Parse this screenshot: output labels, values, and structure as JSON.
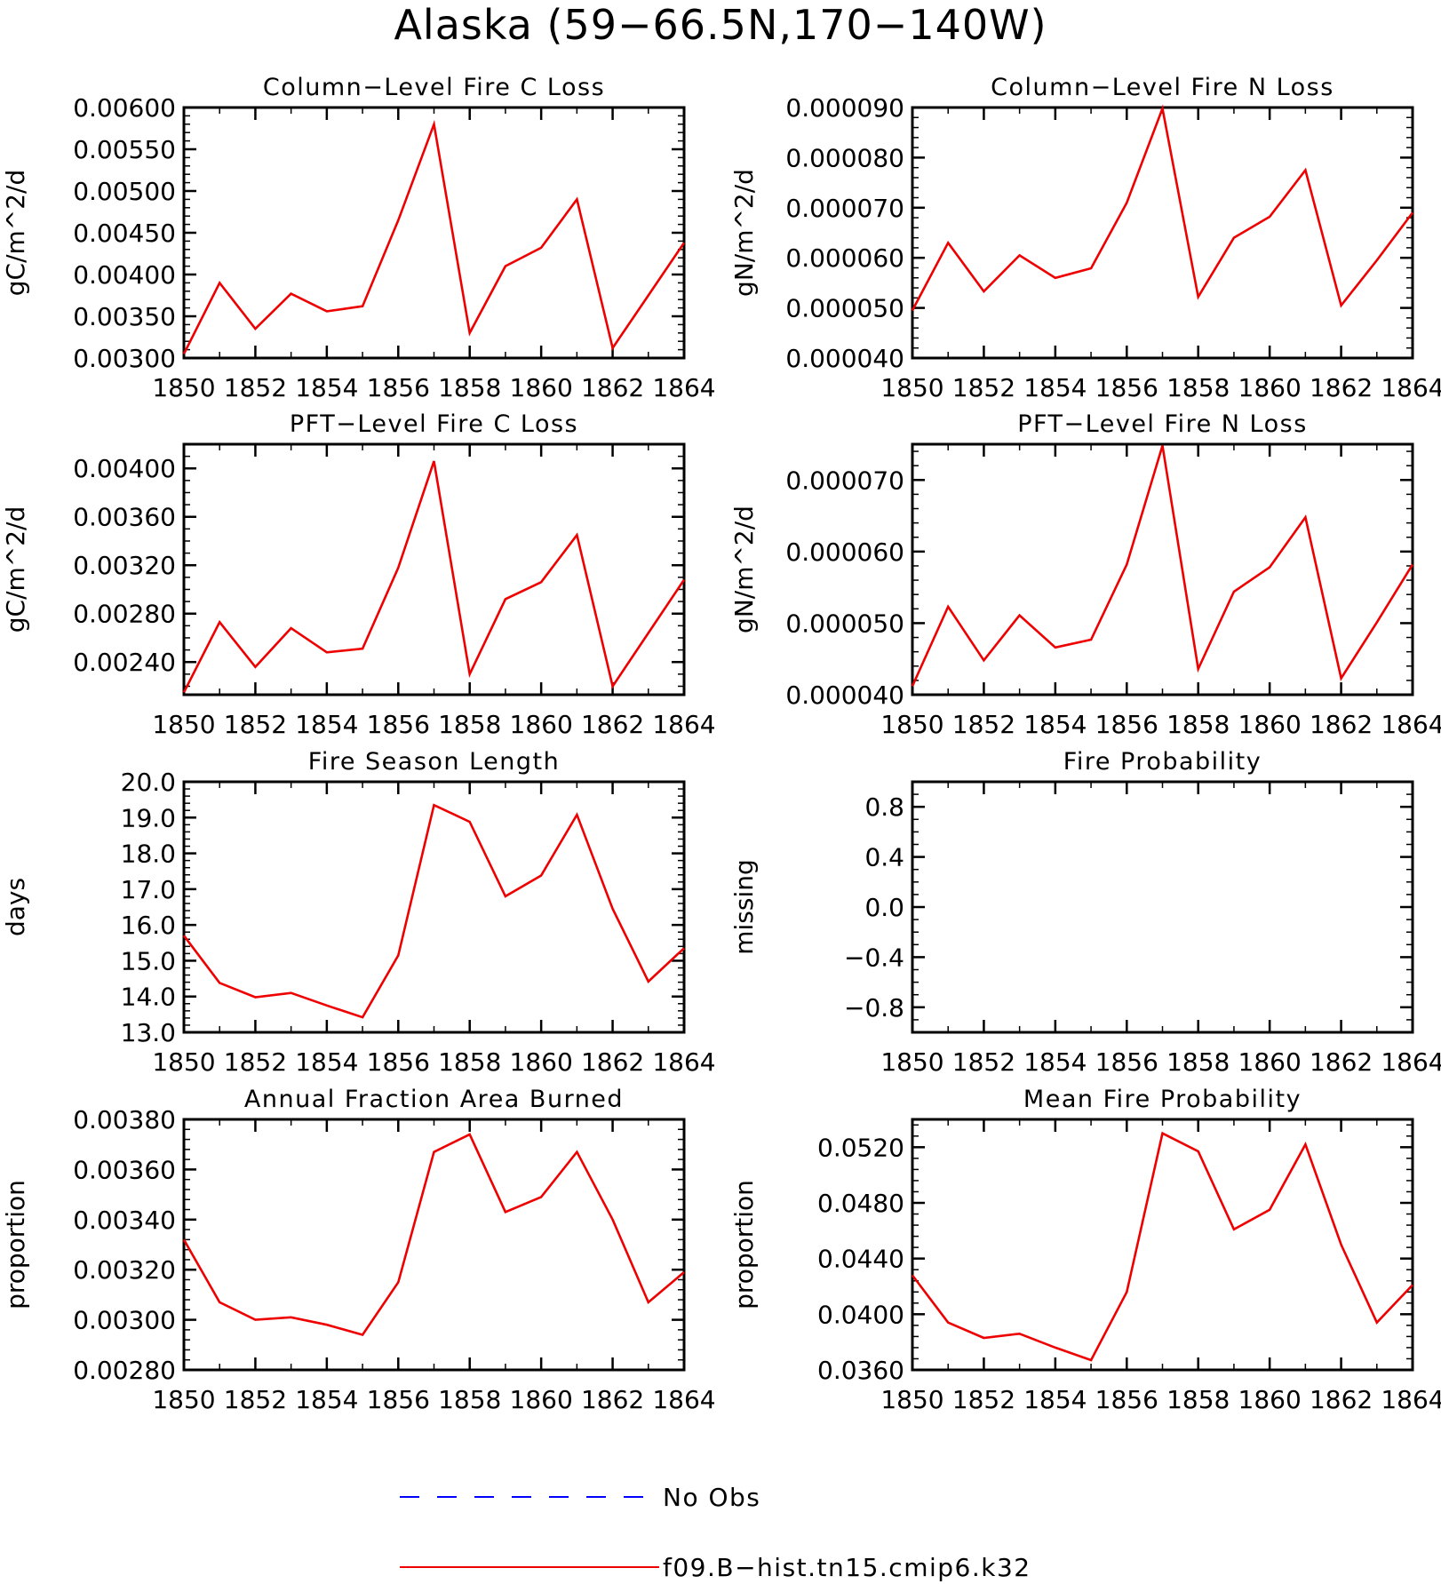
{
  "title": "Alaska (59−66.5N,170−140W)",
  "colors": {
    "model": "#ee0000",
    "obs": "#0000ff",
    "axis": "#000000"
  },
  "legend": [
    {
      "label": "No Obs",
      "color": "#0000ff",
      "style": "dashed"
    },
    {
      "label": "f09.B−hist.tn15.cmip6.k32",
      "color": "#ee0000",
      "style": "solid"
    }
  ],
  "chart_data": [
    {
      "type": "line",
      "title": "Column−Level Fire C Loss",
      "ylabel": "gC/m^2/d",
      "xlim": [
        1850,
        1864
      ],
      "xticks": [
        1850,
        1852,
        1854,
        1856,
        1858,
        1860,
        1862,
        1864
      ],
      "ylim": [
        0.003,
        0.006
      ],
      "yticks": [
        0.003,
        0.0035,
        0.004,
        0.0045,
        0.005,
        0.0055,
        0.006
      ],
      "ytick_labels": [
        "0.00300",
        "0.00350",
        "0.00400",
        "0.00450",
        "0.00500",
        "0.00550",
        "0.00600"
      ],
      "yminor": 0.0001,
      "x": [
        1850,
        1851,
        1852,
        1853,
        1854,
        1855,
        1856,
        1857,
        1858,
        1859,
        1860,
        1861,
        1862,
        1863,
        1864
      ],
      "series": [
        {
          "name": "f09.B−hist.tn15.cmip6.k32",
          "values": [
            0.00305,
            0.0039,
            0.00335,
            0.00377,
            0.00356,
            0.00362,
            0.00465,
            0.0058,
            0.0033,
            0.0041,
            0.00432,
            0.0049,
            0.00312,
            0.00375,
            0.00438
          ]
        }
      ]
    },
    {
      "type": "line",
      "title": "Column−Level Fire N Loss",
      "ylabel": "gN/m^2/d",
      "xlim": [
        1850,
        1864
      ],
      "xticks": [
        1850,
        1852,
        1854,
        1856,
        1858,
        1860,
        1862,
        1864
      ],
      "ylim": [
        4e-05,
        9e-05
      ],
      "yticks": [
        4e-05,
        5e-05,
        6e-05,
        7e-05,
        8e-05,
        9e-05
      ],
      "ytick_labels": [
        "0.000040",
        "0.000050",
        "0.000060",
        "0.000070",
        "0.000080",
        "0.000090"
      ],
      "yminor": 2e-06,
      "x": [
        1850,
        1851,
        1852,
        1853,
        1854,
        1855,
        1856,
        1857,
        1858,
        1859,
        1860,
        1861,
        1862,
        1863,
        1864
      ],
      "series": [
        {
          "name": "f09.B−hist.tn15.cmip6.k32",
          "values": [
            4.95e-05,
            6.3e-05,
            5.33e-05,
            6.05e-05,
            5.6e-05,
            5.79e-05,
            7.1e-05,
            8.98e-05,
            5.22e-05,
            6.4e-05,
            6.82e-05,
            7.75e-05,
            5.05e-05,
            5.95e-05,
            6.9e-05
          ]
        }
      ]
    },
    {
      "type": "line",
      "title": "PFT−Level Fire C Loss",
      "ylabel": "gC/m^2/d",
      "xlim": [
        1850,
        1864
      ],
      "xticks": [
        1850,
        1852,
        1854,
        1856,
        1858,
        1860,
        1862,
        1864
      ],
      "ylim": [
        0.00213,
        0.0042
      ],
      "yticks": [
        0.0024,
        0.0028,
        0.0032,
        0.0036,
        0.004
      ],
      "ytick_labels": [
        "0.00240",
        "0.00280",
        "0.00320",
        "0.00360",
        "0.00400"
      ],
      "yminor": 0.0001,
      "x": [
        1850,
        1851,
        1852,
        1853,
        1854,
        1855,
        1856,
        1857,
        1858,
        1859,
        1860,
        1861,
        1862,
        1863,
        1864
      ],
      "series": [
        {
          "name": "f09.B−hist.tn15.cmip6.k32",
          "values": [
            0.00215,
            0.00273,
            0.00236,
            0.00268,
            0.00248,
            0.00251,
            0.00318,
            0.00406,
            0.0023,
            0.00292,
            0.00306,
            0.00345,
            0.0022,
            0.00264,
            0.00308
          ]
        }
      ]
    },
    {
      "type": "line",
      "title": "PFT−Level Fire N Loss",
      "ylabel": "gN/m^2/d",
      "xlim": [
        1850,
        1864
      ],
      "xticks": [
        1850,
        1852,
        1854,
        1856,
        1858,
        1860,
        1862,
        1864
      ],
      "ylim": [
        4e-05,
        7.5e-05
      ],
      "yticks": [
        4e-05,
        5e-05,
        6e-05,
        7e-05
      ],
      "ytick_labels": [
        "0.000040",
        "0.000050",
        "0.000060",
        "0.000070"
      ],
      "yminor": 2e-06,
      "x": [
        1850,
        1851,
        1852,
        1853,
        1854,
        1855,
        1856,
        1857,
        1858,
        1859,
        1860,
        1861,
        1862,
        1863,
        1864
      ],
      "series": [
        {
          "name": "f09.B−hist.tn15.cmip6.k32",
          "values": [
            4.12e-05,
            5.23e-05,
            4.48e-05,
            5.11e-05,
            4.66e-05,
            4.77e-05,
            5.82e-05,
            7.48e-05,
            4.36e-05,
            5.44e-05,
            5.78e-05,
            6.48e-05,
            4.23e-05,
            5.01e-05,
            5.82e-05
          ]
        }
      ]
    },
    {
      "type": "line",
      "title": "Fire Season Length",
      "ylabel": "days",
      "xlim": [
        1850,
        1864
      ],
      "xticks": [
        1850,
        1852,
        1854,
        1856,
        1858,
        1860,
        1862,
        1864
      ],
      "ylim": [
        13,
        20
      ],
      "yticks": [
        13,
        14,
        15,
        16,
        17,
        18,
        19,
        20
      ],
      "ytick_labels": [
        "13.0",
        "14.0",
        "15.0",
        "16.0",
        "17.0",
        "18.0",
        "19.0",
        "20.0"
      ],
      "yminor": 0.2,
      "x": [
        1850,
        1851,
        1852,
        1853,
        1854,
        1855,
        1856,
        1857,
        1858,
        1859,
        1860,
        1861,
        1862,
        1863,
        1864
      ],
      "series": [
        {
          "name": "f09.B−hist.tn15.cmip6.k32",
          "values": [
            15.7,
            14.38,
            13.98,
            14.1,
            13.75,
            13.42,
            15.15,
            19.35,
            18.88,
            16.8,
            17.38,
            19.08,
            16.45,
            14.42,
            15.35
          ]
        }
      ]
    },
    {
      "type": "line",
      "title": "Fire Probability",
      "ylabel": "missing",
      "xlim": [
        1850,
        1864
      ],
      "xticks": [
        1850,
        1852,
        1854,
        1856,
        1858,
        1860,
        1862,
        1864
      ],
      "ylim": [
        -1.0,
        1.0
      ],
      "yticks": [
        -0.8,
        -0.4,
        0.0,
        0.4,
        0.8
      ],
      "ytick_labels": [
        "−0.8",
        "−0.4",
        "0.0",
        "0.4",
        "0.8"
      ],
      "yminor": 0.1,
      "x": [],
      "series": []
    },
    {
      "type": "line",
      "title": "Annual Fraction Area Burned",
      "ylabel": "proportion",
      "xlim": [
        1850,
        1864
      ],
      "xticks": [
        1850,
        1852,
        1854,
        1856,
        1858,
        1860,
        1862,
        1864
      ],
      "ylim": [
        0.0028,
        0.0038
      ],
      "yticks": [
        0.0028,
        0.003,
        0.0032,
        0.0034,
        0.0036,
        0.0038
      ],
      "ytick_labels": [
        "0.00280",
        "0.00300",
        "0.00320",
        "0.00340",
        "0.00360",
        "0.00380"
      ],
      "yminor": 4e-05,
      "x": [
        1850,
        1851,
        1852,
        1853,
        1854,
        1855,
        1856,
        1857,
        1858,
        1859,
        1860,
        1861,
        1862,
        1863,
        1864
      ],
      "series": [
        {
          "name": "f09.B−hist.tn15.cmip6.k32",
          "values": [
            0.00332,
            0.00307,
            0.003,
            0.00301,
            0.00298,
            0.00294,
            0.00315,
            0.00367,
            0.00374,
            0.00343,
            0.00349,
            0.00367,
            0.0034,
            0.00307,
            0.00319
          ]
        }
      ]
    },
    {
      "type": "line",
      "title": "Mean Fire Probability",
      "ylabel": "proportion",
      "xlim": [
        1850,
        1864
      ],
      "xticks": [
        1850,
        1852,
        1854,
        1856,
        1858,
        1860,
        1862,
        1864
      ],
      "ylim": [
        0.036,
        0.054
      ],
      "yticks": [
        0.036,
        0.04,
        0.044,
        0.048,
        0.052
      ],
      "ytick_labels": [
        "0.0360",
        "0.0400",
        "0.0440",
        "0.0480",
        "0.0520"
      ],
      "yminor": 0.0008,
      "x": [
        1850,
        1851,
        1852,
        1853,
        1854,
        1855,
        1856,
        1857,
        1858,
        1859,
        1860,
        1861,
        1862,
        1863,
        1864
      ],
      "series": [
        {
          "name": "f09.B−hist.tn15.cmip6.k32",
          "values": [
            0.0428,
            0.0394,
            0.0383,
            0.0386,
            0.0376,
            0.0367,
            0.0416,
            0.053,
            0.0517,
            0.0461,
            0.0475,
            0.0522,
            0.045,
            0.0394,
            0.0421
          ]
        }
      ]
    }
  ]
}
